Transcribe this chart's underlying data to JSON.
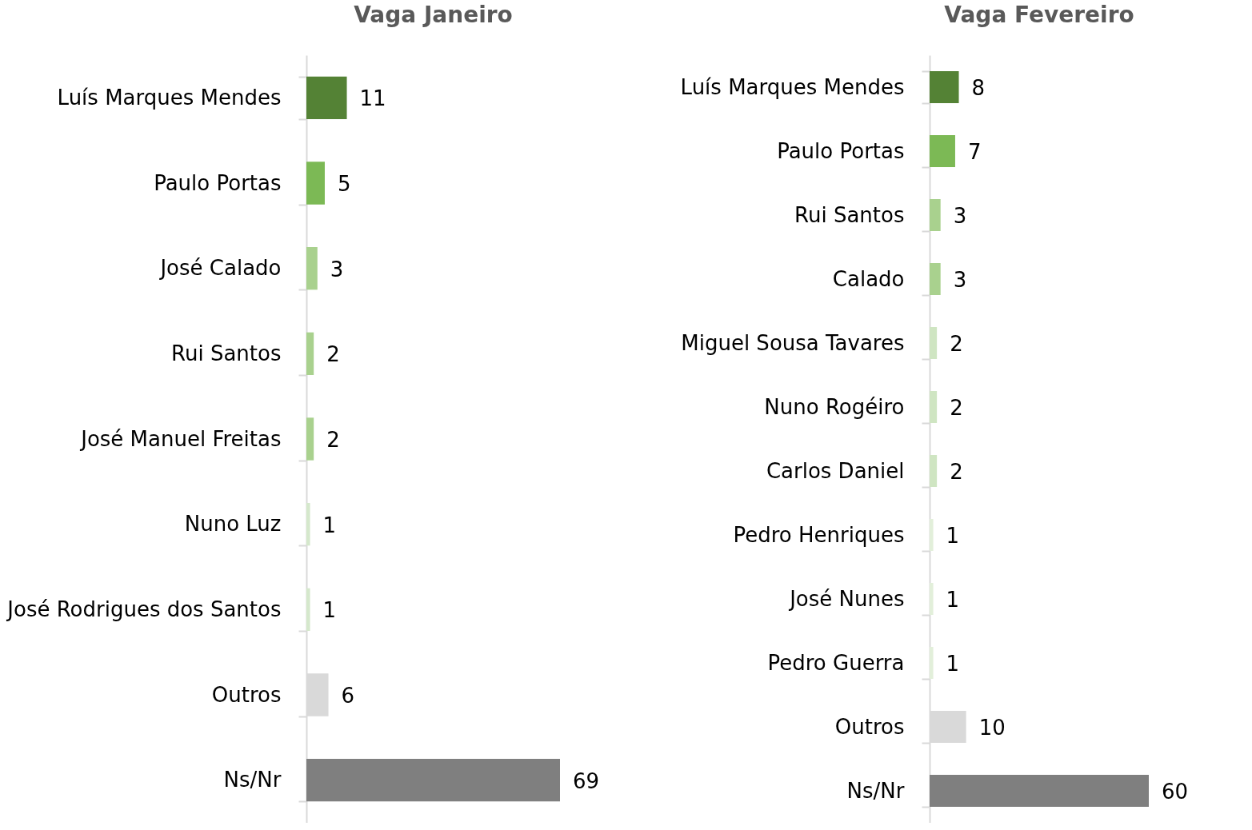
{
  "chart_data": [
    {
      "type": "bar",
      "orientation": "horizontal",
      "title": "Vaga Janeiro",
      "data_labels": true,
      "categories": [
        "Luís Marques Mendes",
        "Paulo Portas",
        "José Calado",
        "Rui Santos",
        "José Manuel Freitas",
        "Nuno Luz",
        "José Rodrigues dos Santos",
        "Outros",
        "Ns/Nr"
      ],
      "values": [
        11,
        5,
        3,
        2,
        2,
        1,
        1,
        6,
        69
      ],
      "colors": [
        "#548235",
        "#7cb955",
        "#a9d18e",
        "#a9d18e",
        "#a9d18e",
        "#d5e8cc",
        "#d5e8cc",
        "#d9d9d9",
        "#7f7f7f"
      ]
    },
    {
      "type": "bar",
      "orientation": "horizontal",
      "title": "Vaga Fevereiro",
      "data_labels": true,
      "categories": [
        "Luís Marques Mendes",
        "Paulo Portas",
        "Rui Santos",
        "Calado",
        "Miguel Sousa Tavares",
        "Nuno Rogéiro",
        "Carlos Daniel",
        "Pedro Henriques",
        "José Nunes",
        "Pedro Guerra",
        "Outros",
        "Ns/Nr"
      ],
      "values": [
        8,
        7,
        3,
        3,
        2,
        2,
        2,
        1,
        1,
        1,
        10,
        60
      ],
      "colors": [
        "#548235",
        "#7cb955",
        "#a9d18e",
        "#a9d18e",
        "#cfe5c2",
        "#cfe5c2",
        "#cfe5c2",
        "#e2efda",
        "#e2efda",
        "#e2efda",
        "#d9d9d9",
        "#7f7f7f"
      ]
    }
  ]
}
